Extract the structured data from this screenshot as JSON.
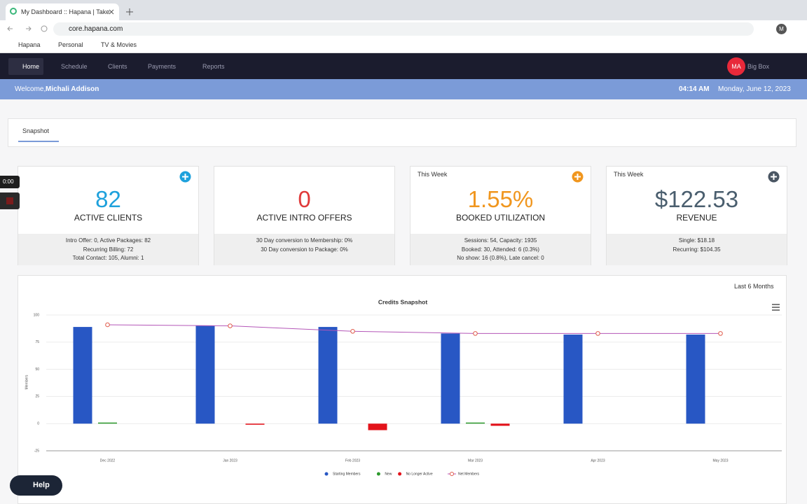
{
  "browser": {
    "tab_title": "My Dashboard :: Hapana | Take",
    "url": "core.hapana.com",
    "bookmarks": [
      "Hapana",
      "Personal",
      "TV & Movies"
    ],
    "profile": "M"
  },
  "nav": {
    "items": [
      "Home",
      "Schedule",
      "Clients",
      "Payments",
      "Reports"
    ],
    "avatar": "MA",
    "account": "Big Box"
  },
  "welcome": {
    "greeting": "Welcome,",
    "user": "Michali Addison",
    "time": "04:14 AM",
    "date": "Monday, June 12, 2023"
  },
  "tabs": [
    "Snapshot"
  ],
  "cards": [
    {
      "value": "82",
      "label": "ACTIVE CLIENTS",
      "details": [
        "Intro Offer: 0, Active Packages: 82",
        "Recurring Billing: 72",
        "Total Contact: 105, Alumni: 1"
      ]
    },
    {
      "value": "0",
      "label": "ACTIVE INTRO OFFERS",
      "details": [
        "30 Day conversion to Membership: 0%",
        "30 Day conversion to Package: 0%"
      ]
    },
    {
      "period": "This Week",
      "value": "1.55%",
      "label": "BOOKED UTILIZATION",
      "details": [
        "Sessions: 54, Capacity: 1935",
        "Booked: 30, Attended: 6 (0.3%)",
        "No show: 16 (0.8%), Late cancel: 0"
      ]
    },
    {
      "period": "This Week",
      "value": "$122.53",
      "label": "REVENUE",
      "details": [
        "Single: $18.18",
        "Recurring: $104.35"
      ]
    }
  ],
  "timer": "0:00",
  "help": "Help",
  "chart_range": "Last 6 Months",
  "chart_data": {
    "type": "bar",
    "title": "Credits Snapshot",
    "y_label": "Members",
    "categories": [
      "Dec 2022",
      "Jan 2023",
      "Feb 2023",
      "Mar 2023",
      "Apr 2023",
      "May 2023"
    ],
    "series": [
      {
        "name": "Starting Members",
        "type": "bar",
        "color": "#2857c4",
        "values": [
          89,
          90,
          89,
          83,
          82,
          82
        ]
      },
      {
        "name": "New",
        "type": "bar",
        "color": "#2e9a2e",
        "values": [
          1,
          0,
          0,
          1,
          0,
          0
        ]
      },
      {
        "name": "No Longer Active",
        "type": "bar",
        "color": "#e3131b",
        "values": [
          0,
          -1,
          -6,
          -2,
          0,
          0
        ]
      },
      {
        "name": "Net Members",
        "type": "line",
        "color": "#b456b8",
        "marker_color": "#e05a4a",
        "values": [
          91,
          90,
          85,
          83,
          83,
          83
        ]
      }
    ],
    "ylim": [
      -25,
      100
    ],
    "yticks": [
      -25,
      0,
      25,
      50,
      75,
      100
    ],
    "grid": true
  }
}
